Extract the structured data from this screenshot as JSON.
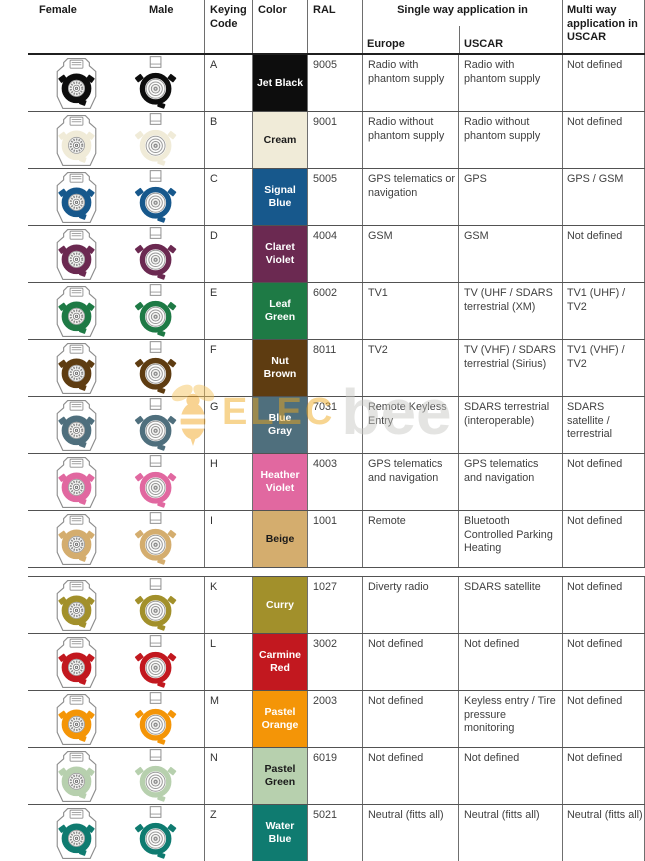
{
  "header": {
    "female": "Female",
    "male": "Male",
    "keying_code": "Keying Code",
    "color": "Color",
    "ral": "RAL",
    "single_way": "Single way application in",
    "europe": "Europe",
    "uscar": "USCAR",
    "multi_way": "Multi way application in USCAR"
  },
  "watermark": {
    "left": "ELEC",
    "right": "bee",
    "accent_color": "#f2a71f"
  },
  "table": {
    "rows": [
      {
        "code": "A",
        "color_name": "Jet Black",
        "hex": "#0d0d0d",
        "label_color": "#ffffff",
        "ral": "9005",
        "europe": "Radio with phantom supply",
        "uscar": "Radio with phantom supply",
        "multi": "Not defined"
      },
      {
        "code": "B",
        "color_name": "Cream",
        "hex": "#f0ebd8",
        "label_color": "#1a1a1a",
        "ral": "9001",
        "europe": "Radio without phantom supply",
        "uscar": "Radio without phantom supply",
        "multi": "Not defined"
      },
      {
        "code": "C",
        "color_name": "Signal Blue",
        "hex": "#17588c",
        "label_color": "#ffffff",
        "ral": "5005",
        "europe": "GPS telematics or navigation",
        "uscar": "GPS",
        "multi": "GPS / GSM"
      },
      {
        "code": "D",
        "color_name": "Claret Violet",
        "hex": "#6b2951",
        "label_color": "#ffffff",
        "ral": "4004",
        "europe": "GSM",
        "uscar": "GSM",
        "multi": "Not defined"
      },
      {
        "code": "E",
        "color_name": "Leaf Green",
        "hex": "#1e7a45",
        "label_color": "#ffffff",
        "ral": "6002",
        "europe": "TV1",
        "uscar": "TV (UHF / SDARS terrestrial (XM)",
        "multi": "TV1 (UHF) / TV2"
      },
      {
        "code": "F",
        "color_name": "Nut Brown",
        "hex": "#5e3c11",
        "label_color": "#ffffff",
        "ral": "8011",
        "europe": "TV2",
        "uscar": "TV (VHF) / SDARS terrestrial (Sirius)",
        "multi": "TV1 (VHF) / TV2"
      },
      {
        "code": "G",
        "color_name": "Blue Gray",
        "hex": "#4f6f7d",
        "label_color": "#ffffff",
        "ral": "7031",
        "europe": "Remote Keyless Entry",
        "uscar": "SDARS terrestrial (interoperable)",
        "multi": "SDARS satellite / terrestrial"
      },
      {
        "code": "H",
        "color_name": "Heather Violet",
        "hex": "#e168a0",
        "label_color": "#ffffff",
        "ral": "4003",
        "europe": "GPS telematics and navigation",
        "uscar": "GPS telematics and navigation",
        "multi": "Not defined"
      },
      {
        "code": "I",
        "color_name": "Beige",
        "hex": "#d4ad6e",
        "label_color": "#1a1a1a",
        "ral": "1001",
        "europe": "Remote",
        "uscar": "Bluetooth Controlled Parking Heating",
        "multi": "Not defined"
      },
      {
        "code": "K",
        "color_name": "Curry",
        "hex": "#a2902b",
        "label_color": "#ffffff",
        "ral": "1027",
        "europe": "Diverty radio",
        "uscar": "SDARS satellite",
        "multi": "Not defined",
        "page_break_before": true
      },
      {
        "code": "L",
        "color_name": "Carmine Red",
        "hex": "#c2181f",
        "label_color": "#ffffff",
        "ral": "3002",
        "europe": "Not defined",
        "uscar": "Not defined",
        "multi": "Not defined"
      },
      {
        "code": "M",
        "color_name": "Pastel Orange",
        "hex": "#f49507",
        "label_color": "#ffffff",
        "ral": "2003",
        "europe": "Not defined",
        "uscar": "Keyless entry / Tire pressure monitoring",
        "multi": "Not defined"
      },
      {
        "code": "N",
        "color_name": "Pastel Green",
        "hex": "#b7d0ae",
        "label_color": "#1a1a1a",
        "ral": "6019",
        "europe": "Not defined",
        "uscar": "Not defined",
        "multi": "Not defined"
      },
      {
        "code": "Z",
        "color_name": "Water Blue",
        "hex": "#0f7b70",
        "label_color": "#ffffff",
        "ral": "5021",
        "europe": "Neutral (fitts all)",
        "uscar": "Neutral (fitts all)",
        "multi": "Neutral (fitts all)"
      }
    ]
  }
}
